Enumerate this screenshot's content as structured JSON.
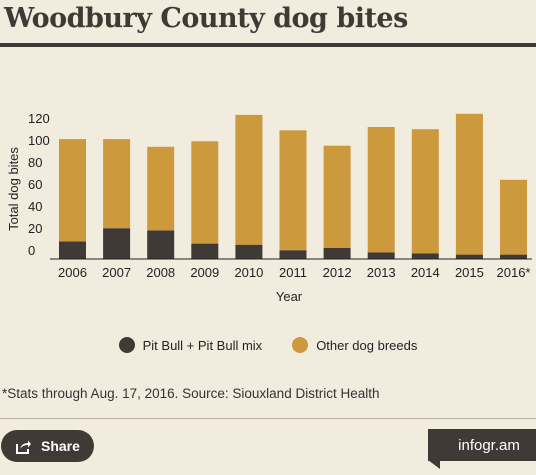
{
  "header": {
    "title": "Woodbury County dog bites"
  },
  "chart_data": {
    "type": "bar",
    "stacked": true,
    "categories": [
      "2006",
      "2007",
      "2008",
      "2009",
      "2010",
      "2011",
      "2012",
      "2013",
      "2014",
      "2015",
      "2016*"
    ],
    "series": [
      {
        "name": "Pit Bull + Pit Bull mix",
        "color": "#3f3a35",
        "values": [
          16,
          28,
          26,
          14,
          13,
          8,
          10,
          6,
          5,
          4,
          4
        ]
      },
      {
        "name": "Other dog breeds",
        "color": "#cc9a3c",
        "values": [
          93,
          81,
          76,
          93,
          118,
          109,
          93,
          114,
          113,
          128,
          68
        ]
      }
    ],
    "xlabel": "Year",
    "ylabel": "Total dog bites",
    "yticks": [
      0,
      20,
      40,
      60,
      80,
      100,
      120
    ],
    "ylim": [
      0,
      135
    ],
    "grid": false,
    "legend_position": "bottom"
  },
  "footnote": "*Stats through Aug. 17, 2016. Source: Siouxland District Health",
  "footer": {
    "share_label": "Share",
    "brand": "infogr.am"
  }
}
